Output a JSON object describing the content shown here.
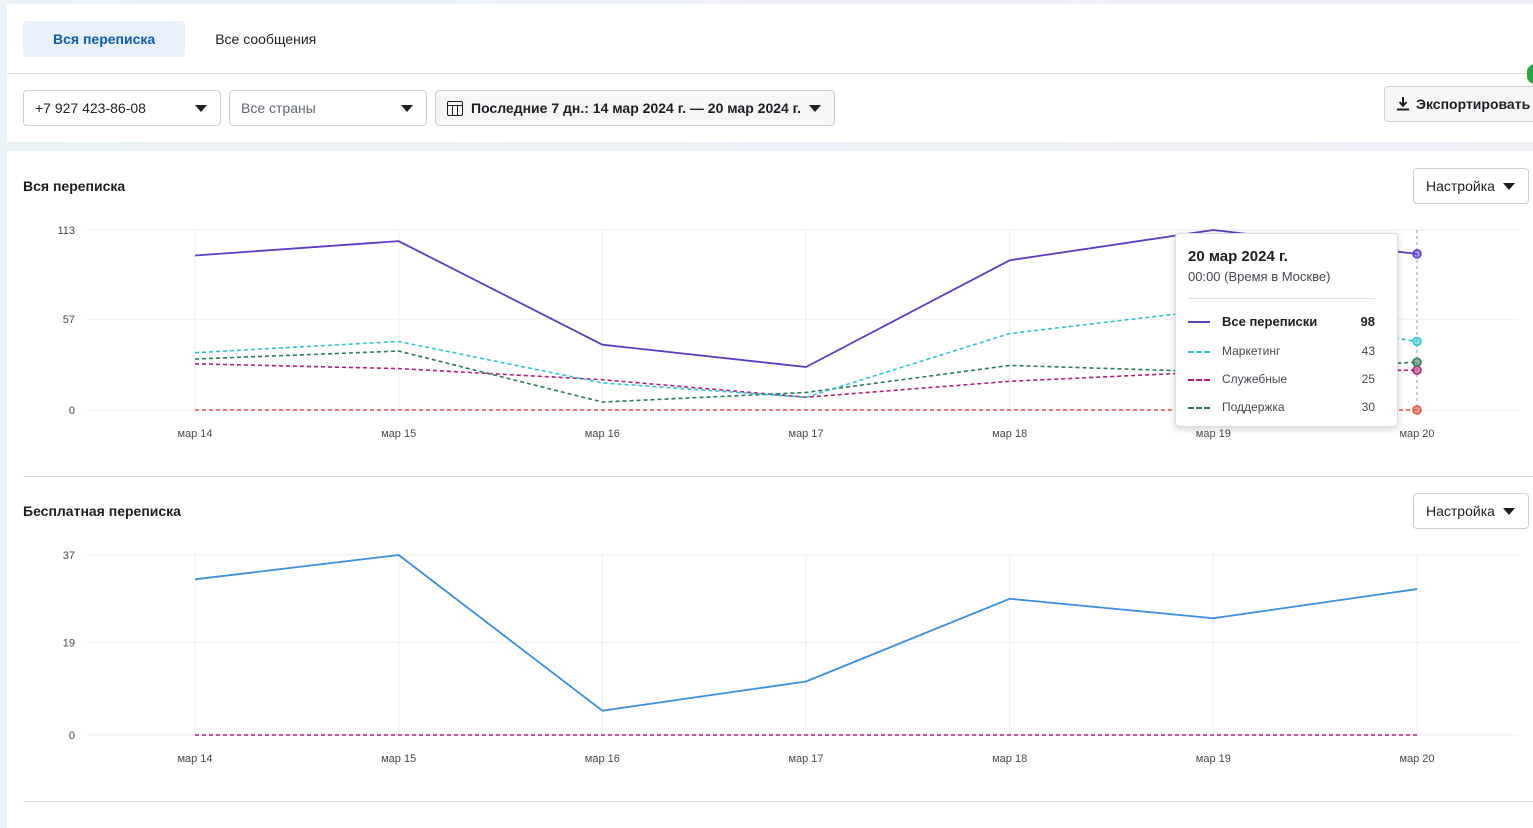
{
  "tabs": [
    {
      "label": "Вся переписка",
      "active": true
    },
    {
      "label": "Все сообщения",
      "active": false
    }
  ],
  "filters": {
    "phone": "+7 927 423-86-08",
    "country": "Все страны",
    "date_range": "Последние 7 дн.: 14 мар 2024 г. — 20 мар 2024 г.",
    "export_label": "Экспортировать"
  },
  "colors": {
    "all": "#5e3bc4",
    "marketing": "#2ec5ce",
    "service": "#b01f7a",
    "support": "#2a7a5a",
    "utility": "#e0533f",
    "free": "#3d8fe0"
  },
  "charts": [
    {
      "title": "Вся переписка",
      "setup_label": "Настройка"
    },
    {
      "title": "Бесплатная переписка",
      "setup_label": "Настройка"
    }
  ],
  "tooltip": {
    "date": "20 мар 2024 г.",
    "time": "00:00 (Время в Москве)",
    "rows": [
      {
        "label": "Все переписки",
        "value": "98"
      },
      {
        "label": "Маркетинг",
        "value": "43"
      },
      {
        "label": "Служебные",
        "value": "25"
      },
      {
        "label": "Поддержка",
        "value": "30"
      }
    ]
  },
  "chart_data": [
    {
      "type": "line",
      "title": "Вся переписка",
      "categories": [
        "мар 14",
        "мар 15",
        "мар 16",
        "мар 17",
        "мар 18",
        "мар 19",
        "мар 20"
      ],
      "y_ticks": [
        "0",
        "57",
        "113"
      ],
      "ylim": [
        0,
        113
      ],
      "series": [
        {
          "name": "Все переписки",
          "color": "#5e3bc4",
          "dashed": false,
          "values": [
            97,
            106,
            41,
            27,
            94,
            113,
            98
          ]
        },
        {
          "name": "Маркетинг",
          "color": "#2ec5ce",
          "dashed": true,
          "values": [
            36,
            43,
            17,
            8,
            48,
            63,
            43
          ]
        },
        {
          "name": "Поддержка",
          "color": "#2a7a5a",
          "dashed": true,
          "values": [
            32,
            37,
            5,
            11,
            28,
            24,
            30
          ]
        },
        {
          "name": "Служебные",
          "color": "#b01f7a",
          "dashed": true,
          "values": [
            29,
            26,
            19,
            8,
            18,
            24,
            25
          ]
        },
        {
          "color": "#e0533f",
          "dashed": true,
          "values": [
            0,
            0,
            0,
            0,
            0,
            0,
            0
          ]
        }
      ]
    },
    {
      "type": "line",
      "title": "Бесплатная переписка",
      "categories": [
        "мар 14",
        "мар 15",
        "мар 16",
        "мар 17",
        "мар 18",
        "мар 19",
        "мар 20"
      ],
      "y_ticks": [
        "0",
        "19",
        "37"
      ],
      "ylim": [
        0,
        37
      ],
      "series": [
        {
          "color": "#3d8fe0",
          "dashed": false,
          "values": [
            32,
            37,
            5,
            11,
            28,
            24,
            30
          ]
        },
        {
          "color": "#2ec5ce",
          "dashed": true,
          "values": [
            32,
            37,
            5,
            11,
            28,
            24,
            30
          ]
        },
        {
          "color": "#b01f7a",
          "dashed": true,
          "values": [
            0,
            0,
            0,
            0,
            0,
            0,
            0
          ]
        }
      ]
    }
  ]
}
